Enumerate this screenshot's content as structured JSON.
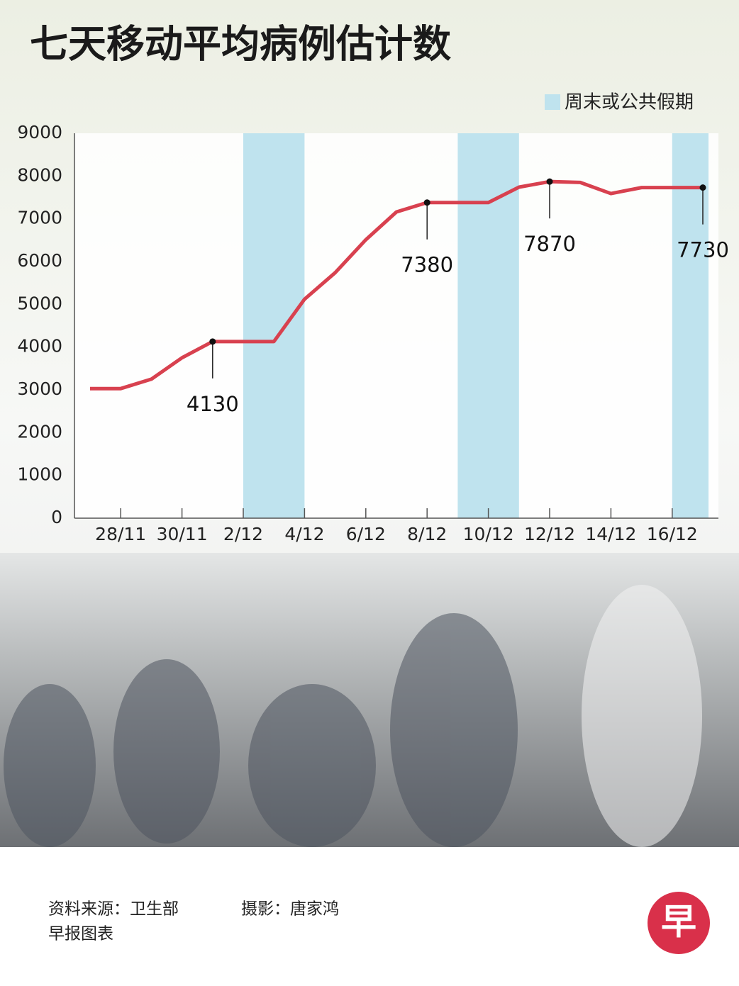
{
  "chart_data": {
    "type": "line",
    "title": "七天移动平均病例估计数",
    "categories": [
      null,
      "28/11",
      null,
      "30/11",
      null,
      "2/12",
      null,
      "4/12",
      null,
      "6/12",
      null,
      "8/12",
      null,
      "10/12",
      null,
      "12/12",
      null,
      "14/12",
      null,
      "16/12",
      null
    ],
    "series": [
      {
        "name": null,
        "color": "#d8414f",
        "values": [
          3030,
          3030,
          3250,
          3750,
          4130,
          4130,
          4130,
          5120,
          5740,
          6510,
          7160,
          7380,
          7380,
          7380,
          7740,
          7870,
          7850,
          7590,
          7730,
          7730,
          7730
        ],
        "value_labels": [
          null,
          null,
          null,
          null,
          4130,
          null,
          null,
          null,
          null,
          null,
          null,
          7380,
          null,
          null,
          null,
          7870,
          null,
          null,
          null,
          null,
          7730
        ]
      }
    ],
    "ylim": [
      0,
      9000
    ],
    "yticks": [
      0,
      1000,
      2000,
      3000,
      4000,
      5000,
      6000,
      7000,
      8000,
      9000
    ],
    "shaded": {
      "name": "周末或公共假期",
      "color": "#bfe3ee",
      "ranges": [
        [
          5,
          7
        ],
        [
          12,
          14
        ],
        [
          19,
          20
        ]
      ]
    }
  },
  "footer": {
    "source": "资料来源：卫生部",
    "photo": "摄影：唐家鸿",
    "credit": "早报图表",
    "logo": "早"
  }
}
